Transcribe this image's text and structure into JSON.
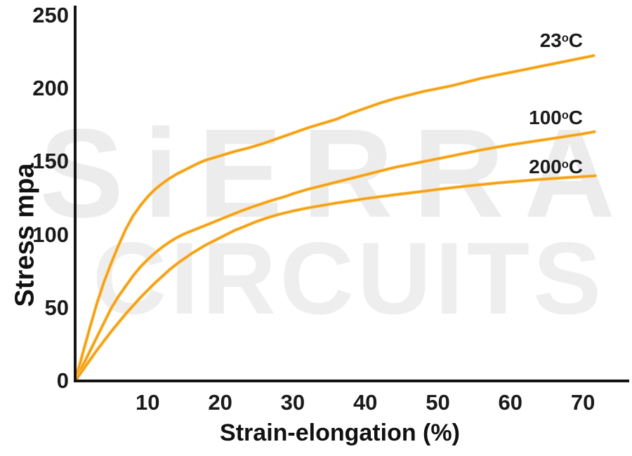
{
  "watermark": {
    "line1": "SiERRA",
    "line2": "CIRCUITS",
    "color": "#ececec"
  },
  "colors": {
    "curve_core": "#F19C15",
    "curve_edge": "#FFC14D",
    "axis": "#141414",
    "text": "#1a1a1a"
  },
  "chart_data": {
    "type": "line",
    "title": "",
    "xlabel": "Strain-elongation (%)",
    "ylabel": "Stress mpa",
    "xlim": [
      0,
      76.5
    ],
    "ylim": [
      0,
      255
    ],
    "x_ticks": [
      10,
      20,
      30,
      40,
      50,
      60,
      70
    ],
    "y_ticks": [
      0,
      50,
      100,
      150,
      200,
      250
    ],
    "grid": false,
    "legend_position": "inline end-of-curve labels",
    "series": [
      {
        "name": "23°C",
        "label": {
          "num": "23",
          "sup": "o",
          "unit": "C"
        },
        "points": [
          [
            0,
            0
          ],
          [
            1,
            18
          ],
          [
            2,
            36
          ],
          [
            3,
            53
          ],
          [
            4,
            68
          ],
          [
            5,
            81
          ],
          [
            6,
            93
          ],
          [
            7,
            104
          ],
          [
            8,
            113
          ],
          [
            9,
            120
          ],
          [
            10,
            126
          ],
          [
            11,
            131
          ],
          [
            12,
            135
          ],
          [
            13,
            138.5
          ],
          [
            14,
            141.5
          ],
          [
            15,
            144
          ],
          [
            16,
            146.5
          ],
          [
            17,
            149
          ],
          [
            18,
            151
          ],
          [
            19,
            152.5
          ],
          [
            20,
            154
          ],
          [
            22,
            157
          ],
          [
            24,
            159.5
          ],
          [
            26,
            162.5
          ],
          [
            28,
            166
          ],
          [
            30,
            169.5
          ],
          [
            32,
            173
          ],
          [
            34,
            176
          ],
          [
            36,
            179
          ],
          [
            38,
            183
          ],
          [
            40,
            186.5
          ],
          [
            42,
            190
          ],
          [
            44,
            193
          ],
          [
            46,
            195.5
          ],
          [
            48,
            198
          ],
          [
            50,
            200
          ],
          [
            52,
            202
          ],
          [
            54,
            204.5
          ],
          [
            56,
            207
          ],
          [
            58,
            209
          ],
          [
            60,
            211
          ],
          [
            62,
            213
          ],
          [
            64,
            215
          ],
          [
            66,
            217
          ],
          [
            68,
            219
          ],
          [
            70,
            221
          ],
          [
            71.5,
            222.5
          ]
        ]
      },
      {
        "name": "100°C",
        "label": {
          "num": "100",
          "sup": "o",
          "unit": "C"
        },
        "points": [
          [
            0,
            0
          ],
          [
            1,
            10
          ],
          [
            2,
            20
          ],
          [
            3,
            30
          ],
          [
            4,
            40
          ],
          [
            5,
            50
          ],
          [
            6,
            58
          ],
          [
            7,
            65
          ],
          [
            8,
            72
          ],
          [
            9,
            78
          ],
          [
            10,
            83
          ],
          [
            11,
            87.5
          ],
          [
            12,
            91.5
          ],
          [
            13,
            95
          ],
          [
            14,
            98
          ],
          [
            15,
            100.5
          ],
          [
            16,
            102.5
          ],
          [
            17,
            104.5
          ],
          [
            18,
            106.5
          ],
          [
            19,
            108.5
          ],
          [
            20,
            110.5
          ],
          [
            21,
            112.5
          ],
          [
            22,
            114.5
          ],
          [
            23,
            116.5
          ],
          [
            24,
            118.3
          ],
          [
            25,
            120
          ],
          [
            26,
            121.7
          ],
          [
            27,
            123.3
          ],
          [
            28,
            124.8
          ],
          [
            29,
            126.2
          ],
          [
            30,
            128
          ],
          [
            32,
            131
          ],
          [
            34,
            133.5
          ],
          [
            36,
            136
          ],
          [
            38,
            138.5
          ],
          [
            40,
            141
          ],
          [
            42,
            143.5
          ],
          [
            44,
            146
          ],
          [
            46,
            148
          ],
          [
            48,
            150
          ],
          [
            50,
            152
          ],
          [
            52,
            154
          ],
          [
            54,
            156
          ],
          [
            56,
            158
          ],
          [
            58,
            159.8
          ],
          [
            60,
            161.5
          ],
          [
            62,
            163
          ],
          [
            64,
            164.5
          ],
          [
            66,
            166
          ],
          [
            68,
            167.5
          ],
          [
            70,
            169
          ],
          [
            71.6,
            170.5
          ]
        ]
      },
      {
        "name": "200°C",
        "label": {
          "num": "200",
          "sup": "o",
          "unit": "C"
        },
        "points": [
          [
            0,
            0
          ],
          [
            1,
            7
          ],
          [
            2,
            14
          ],
          [
            3,
            21
          ],
          [
            4,
            27.5
          ],
          [
            5,
            34
          ],
          [
            6,
            40
          ],
          [
            7,
            46
          ],
          [
            8,
            51.5
          ],
          [
            9,
            57
          ],
          [
            10,
            62
          ],
          [
            11,
            67
          ],
          [
            12,
            71.5
          ],
          [
            13,
            76
          ],
          [
            14,
            80
          ],
          [
            15,
            83.5
          ],
          [
            16,
            87
          ],
          [
            17,
            90
          ],
          [
            18,
            93
          ],
          [
            19,
            95.5
          ],
          [
            20,
            98
          ],
          [
            21,
            100.5
          ],
          [
            22,
            103
          ],
          [
            23,
            105
          ],
          [
            24,
            107
          ],
          [
            25,
            109
          ],
          [
            26,
            110.8
          ],
          [
            27,
            112.4
          ],
          [
            28,
            113.8
          ],
          [
            29,
            115
          ],
          [
            30,
            116.2
          ],
          [
            32,
            118.3
          ],
          [
            34,
            120
          ],
          [
            36,
            121.7
          ],
          [
            38,
            123.2
          ],
          [
            40,
            124.7
          ],
          [
            42,
            126
          ],
          [
            44,
            127.3
          ],
          [
            46,
            128.5
          ],
          [
            48,
            129.7
          ],
          [
            50,
            131
          ],
          [
            52,
            132.2
          ],
          [
            54,
            133.3
          ],
          [
            56,
            134.3
          ],
          [
            58,
            135.3
          ],
          [
            60,
            136.2
          ],
          [
            62,
            137
          ],
          [
            64,
            137.8
          ],
          [
            66,
            138.5
          ],
          [
            68,
            139.2
          ],
          [
            70,
            139.8
          ],
          [
            71.7,
            140.3
          ]
        ]
      }
    ]
  }
}
